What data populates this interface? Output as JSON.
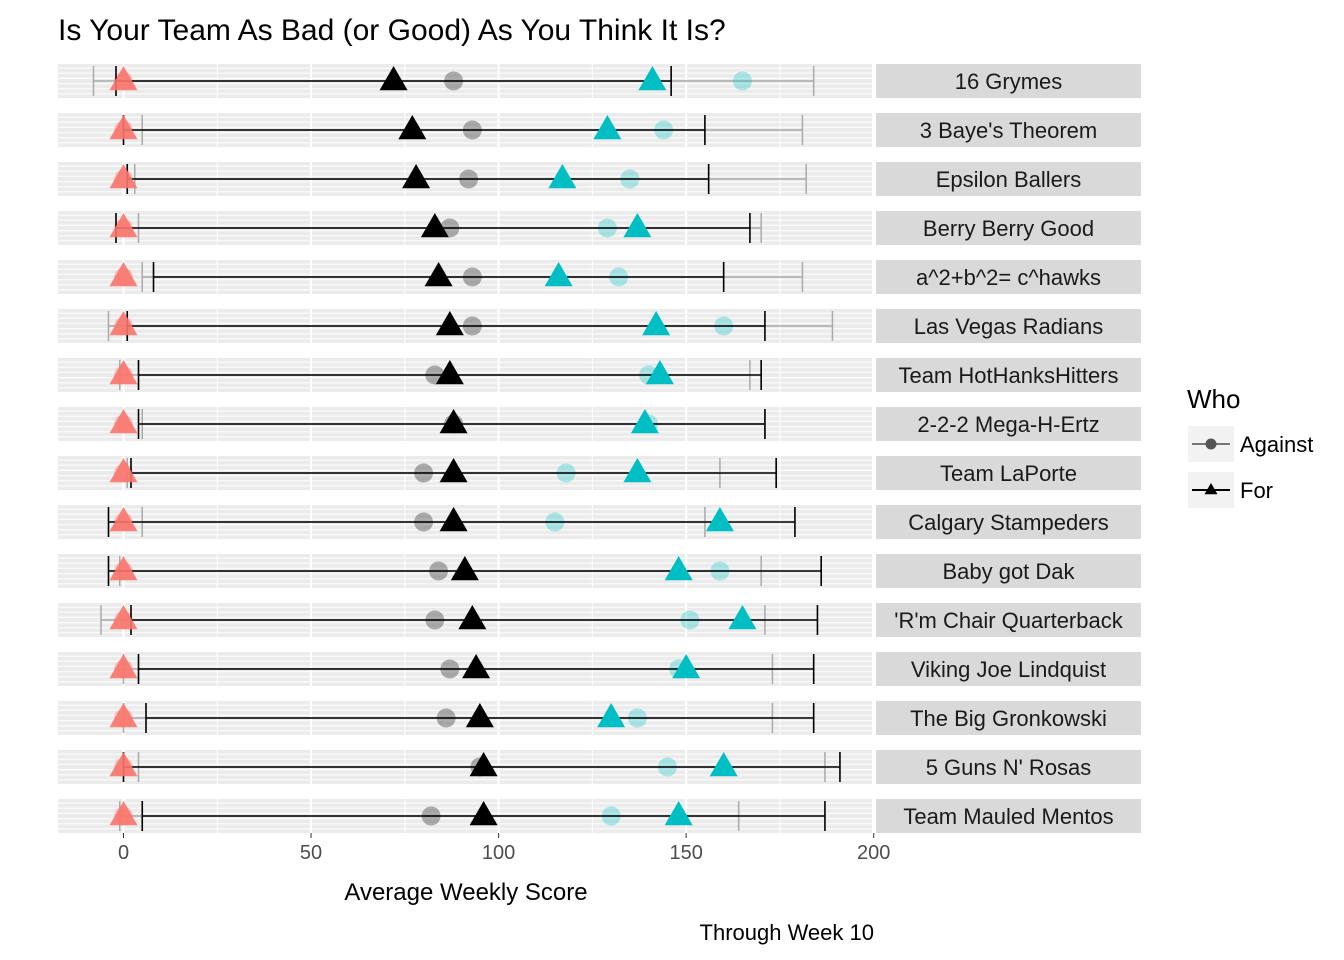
{
  "chart_data": {
    "type": "scatter",
    "title": "Is Your Team As Bad (or Good) As You Think It Is?",
    "xlabel": "Average Weekly Score",
    "caption": "Through Week 10",
    "xlim": [
      -17,
      200
    ],
    "x_ticks": [
      0,
      50,
      100,
      150,
      200
    ],
    "grid": true,
    "legend": {
      "title": "Who",
      "position": "right",
      "entries": [
        {
          "label": "Against",
          "shape": "circle"
        },
        {
          "label": "For",
          "shape": "triangle"
        }
      ]
    },
    "colors": {
      "low": "#F8766D",
      "high": "#00BFC4",
      "mean": "#000000",
      "strip": "#D9D9D9",
      "panel": "#EBEBEB",
      "grid": "#FFFFFF"
    },
    "series_fields": [
      "for_low",
      "for_mean",
      "for_high",
      "for_range",
      "against_low",
      "against_mean",
      "against_high",
      "against_range"
    ],
    "teams": [
      {
        "name": "16 Grymes",
        "for_low": 0,
        "for_mean": 72,
        "for_high": 141,
        "for_range": [
          -2,
          146
        ],
        "against_low": 0,
        "against_mean": 88,
        "against_high": 165,
        "against_range": [
          -8,
          184
        ]
      },
      {
        "name": "3 Baye's Theorem",
        "for_low": 0,
        "for_mean": 77,
        "for_high": 129,
        "for_range": [
          0,
          155
        ],
        "against_low": 0,
        "against_mean": 93,
        "against_high": 144,
        "against_range": [
          5,
          181
        ]
      },
      {
        "name": "Epsilon Ballers",
        "for_low": 0,
        "for_mean": 78,
        "for_high": 117,
        "for_range": [
          1,
          156
        ],
        "against_low": 0,
        "against_mean": 92,
        "against_high": 135,
        "against_range": [
          3,
          182
        ]
      },
      {
        "name": "Berry Berry Good",
        "for_low": 0,
        "for_mean": 83,
        "for_high": 137,
        "for_range": [
          -2,
          167
        ],
        "against_low": 0,
        "against_mean": 87,
        "against_high": 129,
        "against_range": [
          4,
          170
        ]
      },
      {
        "name": "a^2+b^2= c^hawks",
        "for_low": 0,
        "for_mean": 84,
        "for_high": 116,
        "for_range": [
          8,
          160
        ],
        "against_low": 0,
        "against_mean": 93,
        "against_high": 132,
        "against_range": [
          5,
          181
        ]
      },
      {
        "name": "Las Vegas Radians",
        "for_low": 0,
        "for_mean": 87,
        "for_high": 142,
        "for_range": [
          1,
          171
        ],
        "against_low": 0,
        "against_mean": 93,
        "against_high": 160,
        "against_range": [
          -4,
          189
        ]
      },
      {
        "name": "Team HotHanksHitters",
        "for_low": 0,
        "for_mean": 87,
        "for_high": 143,
        "for_range": [
          4,
          170
        ],
        "against_low": 0,
        "against_mean": 83,
        "against_high": 140,
        "against_range": [
          -1,
          167
        ]
      },
      {
        "name": "2-2-2 Mega-H-Ertz",
        "for_low": 0,
        "for_mean": 88,
        "for_high": 139,
        "for_range": [
          4,
          171
        ],
        "against_low": 0,
        "against_mean": 88,
        "against_high": 140,
        "against_range": [
          5,
          171
        ]
      },
      {
        "name": "Team LaPorte",
        "for_low": 0,
        "for_mean": 88,
        "for_high": 137,
        "for_range": [
          2,
          174
        ],
        "against_low": 0,
        "against_mean": 80,
        "against_high": 118,
        "against_range": [
          1,
          159
        ]
      },
      {
        "name": "Calgary Stampeders",
        "for_low": 0,
        "for_mean": 88,
        "for_high": 159,
        "for_range": [
          -4,
          179
        ],
        "against_low": 0,
        "against_mean": 80,
        "against_high": 115,
        "against_range": [
          5,
          155
        ]
      },
      {
        "name": "Baby got Dak",
        "for_low": 0,
        "for_mean": 91,
        "for_high": 148,
        "for_range": [
          -4,
          186
        ],
        "against_low": 0,
        "against_mean": 84,
        "against_high": 159,
        "against_range": [
          -1,
          170
        ]
      },
      {
        "name": "'R'm Chair Quarterback",
        "for_low": 0,
        "for_mean": 93,
        "for_high": 165,
        "for_range": [
          2,
          185
        ],
        "against_low": 0,
        "against_mean": 83,
        "against_high": 151,
        "against_range": [
          -6,
          171
        ]
      },
      {
        "name": "Viking Joe Lindquist",
        "for_low": 0,
        "for_mean": 94,
        "for_high": 150,
        "for_range": [
          4,
          184
        ],
        "against_low": 0,
        "against_mean": 87,
        "against_high": 148,
        "against_range": [
          0,
          173
        ]
      },
      {
        "name": "The Big Gronkowski",
        "for_low": 0,
        "for_mean": 95,
        "for_high": 130,
        "for_range": [
          6,
          184
        ],
        "against_low": 0,
        "against_mean": 86,
        "against_high": 137,
        "against_range": [
          0,
          173
        ]
      },
      {
        "name": "5 Guns N' Rosas",
        "for_low": 0,
        "for_mean": 96,
        "for_high": 160,
        "for_range": [
          0,
          191
        ],
        "against_low": 0,
        "against_mean": 95,
        "against_high": 145,
        "against_range": [
          4,
          187
        ]
      },
      {
        "name": "Team Mauled Mentos",
        "for_low": 0,
        "for_mean": 96,
        "for_high": 148,
        "for_range": [
          5,
          187
        ],
        "against_low": 0,
        "against_mean": 82,
        "against_high": 130,
        "against_range": [
          -1,
          164
        ]
      }
    ]
  }
}
